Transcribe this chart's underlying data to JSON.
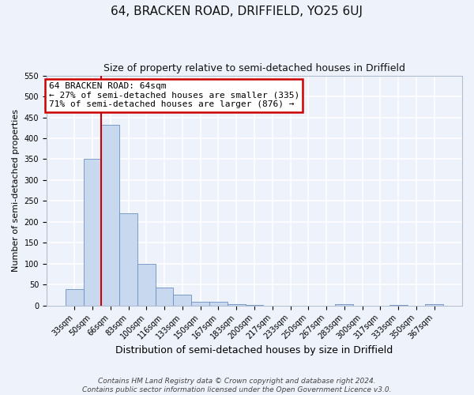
{
  "title": "64, BRACKEN ROAD, DRIFFIELD, YO25 6UJ",
  "subtitle": "Size of property relative to semi-detached houses in Driffield",
  "xlabel": "Distribution of semi-detached houses by size in Driffield",
  "ylabel": "Number of semi-detached properties",
  "categories": [
    "33sqm",
    "50sqm",
    "66sqm",
    "83sqm",
    "100sqm",
    "116sqm",
    "133sqm",
    "150sqm",
    "167sqm",
    "183sqm",
    "200sqm",
    "217sqm",
    "233sqm",
    "250sqm",
    "267sqm",
    "283sqm",
    "300sqm",
    "317sqm",
    "333sqm",
    "350sqm",
    "367sqm"
  ],
  "values": [
    40,
    350,
    433,
    220,
    100,
    44,
    26,
    9,
    10,
    3,
    1,
    0,
    0,
    0,
    0,
    3,
    0,
    0,
    2,
    0,
    3
  ],
  "bar_color": "#c8d8ee",
  "bar_edge_color": "#6a90c0",
  "vline_x": 1.5,
  "vline_color": "#cc0000",
  "annotation_title": "64 BRACKEN ROAD: 64sqm",
  "annotation_line1": "← 27% of semi-detached houses are smaller (335)",
  "annotation_line2": "71% of semi-detached houses are larger (876) →",
  "annotation_box_color": "white",
  "annotation_box_edge_color": "#cc0000",
  "ylim": [
    0,
    550
  ],
  "yticks": [
    0,
    50,
    100,
    150,
    200,
    250,
    300,
    350,
    400,
    450,
    500,
    550
  ],
  "footer1": "Contains HM Land Registry data © Crown copyright and database right 2024.",
  "footer2": "Contains public sector information licensed under the Open Government Licence v3.0.",
  "bg_color": "#eef2fb",
  "grid_color": "white",
  "title_fontsize": 11,
  "subtitle_fontsize": 9,
  "xlabel_fontsize": 9,
  "ylabel_fontsize": 8,
  "tick_fontsize": 7,
  "ann_fontsize": 8,
  "footer_fontsize": 6.5
}
